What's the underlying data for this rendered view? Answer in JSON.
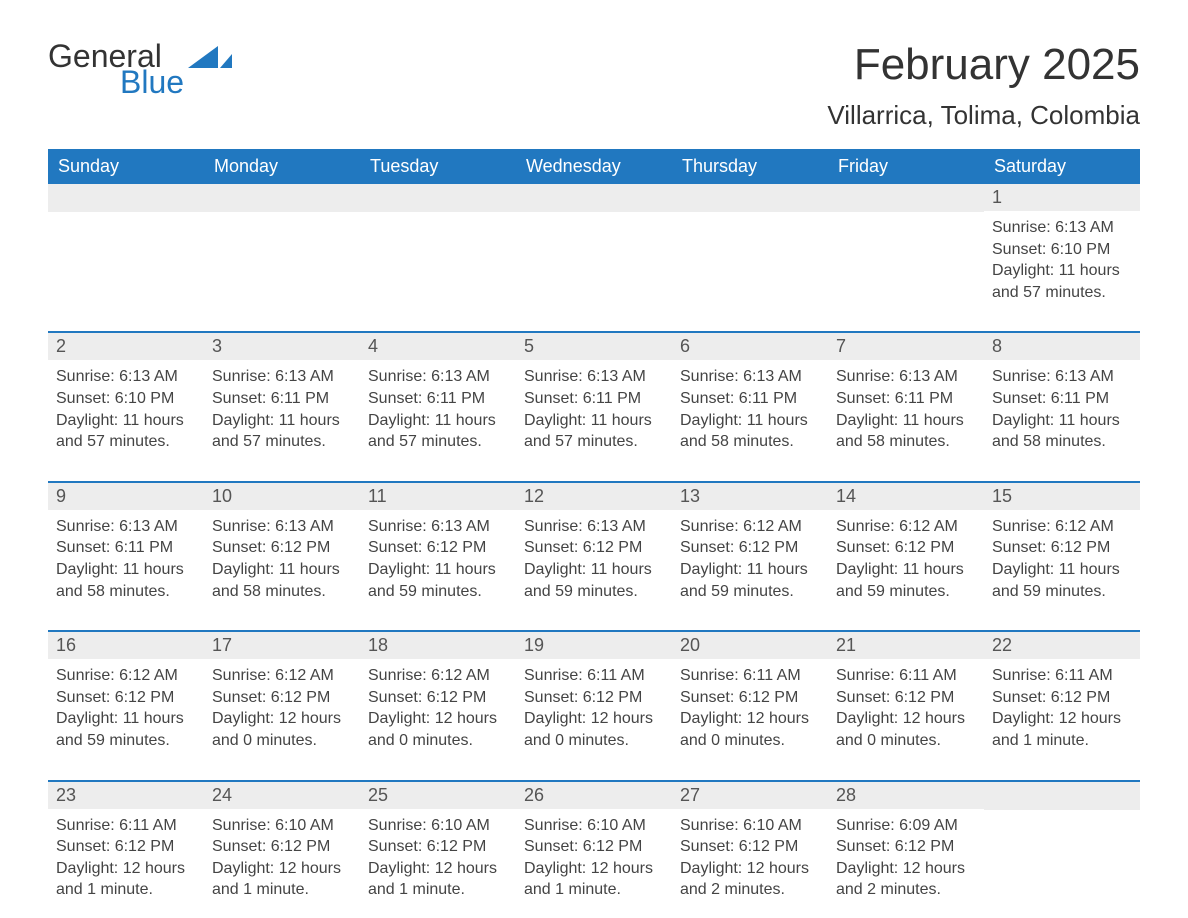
{
  "logo": {
    "general": "General",
    "blue": "Blue",
    "icon_color": "#2178c0"
  },
  "header": {
    "month_title": "February 2025",
    "location": "Villarrica, Tolima, Colombia"
  },
  "colors": {
    "header_bg": "#2178c0",
    "header_text": "#ffffff",
    "row_divider": "#2178c0",
    "daynum_bg": "#ededed",
    "text": "#333333"
  },
  "weekdays": [
    "Sunday",
    "Monday",
    "Tuesday",
    "Wednesday",
    "Thursday",
    "Friday",
    "Saturday"
  ],
  "weeks": [
    [
      null,
      null,
      null,
      null,
      null,
      null,
      {
        "n": "1",
        "sunrise": "Sunrise: 6:13 AM",
        "sunset": "Sunset: 6:10 PM",
        "daylight": "Daylight: 11 hours and 57 minutes."
      }
    ],
    [
      {
        "n": "2",
        "sunrise": "Sunrise: 6:13 AM",
        "sunset": "Sunset: 6:10 PM",
        "daylight": "Daylight: 11 hours and 57 minutes."
      },
      {
        "n": "3",
        "sunrise": "Sunrise: 6:13 AM",
        "sunset": "Sunset: 6:11 PM",
        "daylight": "Daylight: 11 hours and 57 minutes."
      },
      {
        "n": "4",
        "sunrise": "Sunrise: 6:13 AM",
        "sunset": "Sunset: 6:11 PM",
        "daylight": "Daylight: 11 hours and 57 minutes."
      },
      {
        "n": "5",
        "sunrise": "Sunrise: 6:13 AM",
        "sunset": "Sunset: 6:11 PM",
        "daylight": "Daylight: 11 hours and 57 minutes."
      },
      {
        "n": "6",
        "sunrise": "Sunrise: 6:13 AM",
        "sunset": "Sunset: 6:11 PM",
        "daylight": "Daylight: 11 hours and 58 minutes."
      },
      {
        "n": "7",
        "sunrise": "Sunrise: 6:13 AM",
        "sunset": "Sunset: 6:11 PM",
        "daylight": "Daylight: 11 hours and 58 minutes."
      },
      {
        "n": "8",
        "sunrise": "Sunrise: 6:13 AM",
        "sunset": "Sunset: 6:11 PM",
        "daylight": "Daylight: 11 hours and 58 minutes."
      }
    ],
    [
      {
        "n": "9",
        "sunrise": "Sunrise: 6:13 AM",
        "sunset": "Sunset: 6:11 PM",
        "daylight": "Daylight: 11 hours and 58 minutes."
      },
      {
        "n": "10",
        "sunrise": "Sunrise: 6:13 AM",
        "sunset": "Sunset: 6:12 PM",
        "daylight": "Daylight: 11 hours and 58 minutes."
      },
      {
        "n": "11",
        "sunrise": "Sunrise: 6:13 AM",
        "sunset": "Sunset: 6:12 PM",
        "daylight": "Daylight: 11 hours and 59 minutes."
      },
      {
        "n": "12",
        "sunrise": "Sunrise: 6:13 AM",
        "sunset": "Sunset: 6:12 PM",
        "daylight": "Daylight: 11 hours and 59 minutes."
      },
      {
        "n": "13",
        "sunrise": "Sunrise: 6:12 AM",
        "sunset": "Sunset: 6:12 PM",
        "daylight": "Daylight: 11 hours and 59 minutes."
      },
      {
        "n": "14",
        "sunrise": "Sunrise: 6:12 AM",
        "sunset": "Sunset: 6:12 PM",
        "daylight": "Daylight: 11 hours and 59 minutes."
      },
      {
        "n": "15",
        "sunrise": "Sunrise: 6:12 AM",
        "sunset": "Sunset: 6:12 PM",
        "daylight": "Daylight: 11 hours and 59 minutes."
      }
    ],
    [
      {
        "n": "16",
        "sunrise": "Sunrise: 6:12 AM",
        "sunset": "Sunset: 6:12 PM",
        "daylight": "Daylight: 11 hours and 59 minutes."
      },
      {
        "n": "17",
        "sunrise": "Sunrise: 6:12 AM",
        "sunset": "Sunset: 6:12 PM",
        "daylight": "Daylight: 12 hours and 0 minutes."
      },
      {
        "n": "18",
        "sunrise": "Sunrise: 6:12 AM",
        "sunset": "Sunset: 6:12 PM",
        "daylight": "Daylight: 12 hours and 0 minutes."
      },
      {
        "n": "19",
        "sunrise": "Sunrise: 6:11 AM",
        "sunset": "Sunset: 6:12 PM",
        "daylight": "Daylight: 12 hours and 0 minutes."
      },
      {
        "n": "20",
        "sunrise": "Sunrise: 6:11 AM",
        "sunset": "Sunset: 6:12 PM",
        "daylight": "Daylight: 12 hours and 0 minutes."
      },
      {
        "n": "21",
        "sunrise": "Sunrise: 6:11 AM",
        "sunset": "Sunset: 6:12 PM",
        "daylight": "Daylight: 12 hours and 0 minutes."
      },
      {
        "n": "22",
        "sunrise": "Sunrise: 6:11 AM",
        "sunset": "Sunset: 6:12 PM",
        "daylight": "Daylight: 12 hours and 1 minute."
      }
    ],
    [
      {
        "n": "23",
        "sunrise": "Sunrise: 6:11 AM",
        "sunset": "Sunset: 6:12 PM",
        "daylight": "Daylight: 12 hours and 1 minute."
      },
      {
        "n": "24",
        "sunrise": "Sunrise: 6:10 AM",
        "sunset": "Sunset: 6:12 PM",
        "daylight": "Daylight: 12 hours and 1 minute."
      },
      {
        "n": "25",
        "sunrise": "Sunrise: 6:10 AM",
        "sunset": "Sunset: 6:12 PM",
        "daylight": "Daylight: 12 hours and 1 minute."
      },
      {
        "n": "26",
        "sunrise": "Sunrise: 6:10 AM",
        "sunset": "Sunset: 6:12 PM",
        "daylight": "Daylight: 12 hours and 1 minute."
      },
      {
        "n": "27",
        "sunrise": "Sunrise: 6:10 AM",
        "sunset": "Sunset: 6:12 PM",
        "daylight": "Daylight: 12 hours and 2 minutes."
      },
      {
        "n": "28",
        "sunrise": "Sunrise: 6:09 AM",
        "sunset": "Sunset: 6:12 PM",
        "daylight": "Daylight: 12 hours and 2 minutes."
      },
      null
    ]
  ]
}
